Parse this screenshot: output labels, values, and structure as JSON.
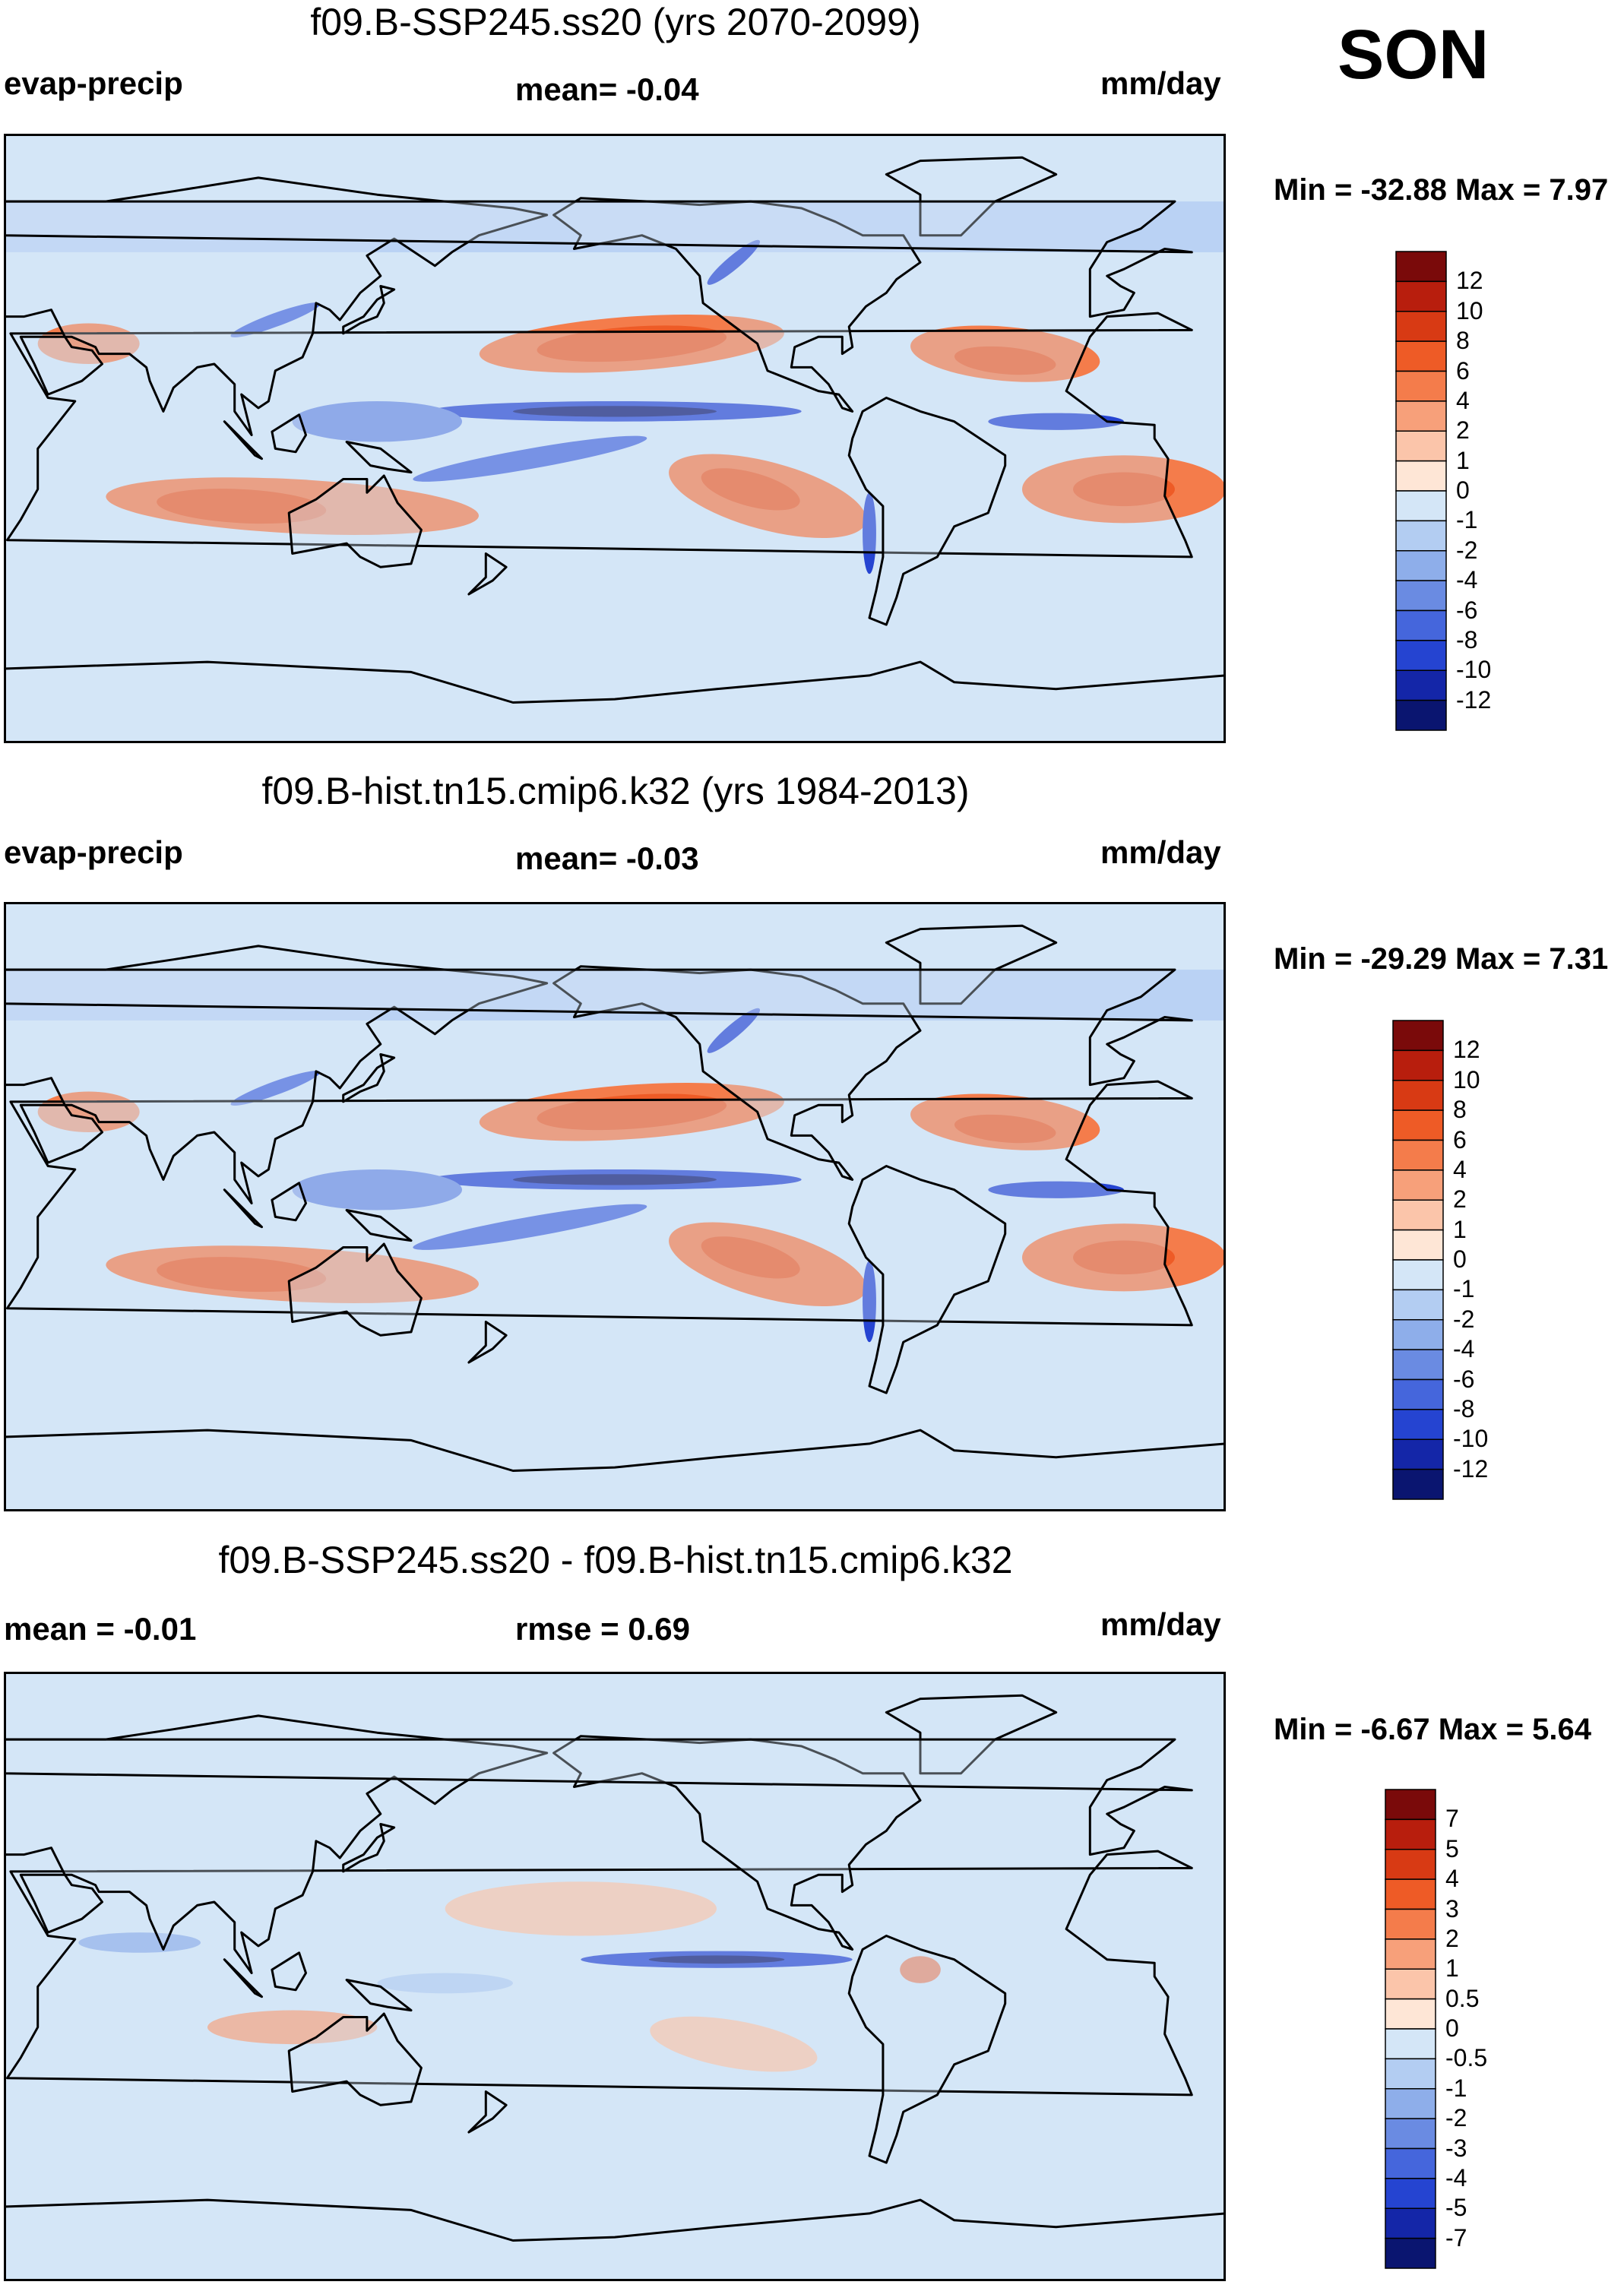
{
  "season": "SON",
  "colors": {
    "ocean_bg": "#d4e6f7",
    "coast": "#000000",
    "frame": "#000000"
  },
  "chart_data": [
    {
      "type": "heatmap",
      "title": "f09.B-SSP245.ss20 (yrs 2070-2099)",
      "left_label": "evap-precip",
      "center_label": "mean=  -0.04",
      "units": "mm/day",
      "minmax": "Min = -32.88 Max =   7.97",
      "mean": -0.04,
      "min": -32.88,
      "max": 7.97,
      "colorbar": {
        "labels": [
          "12",
          "10",
          "8",
          "6",
          "4",
          "2",
          "1",
          "0",
          "-1",
          "-2",
          "-4",
          "-6",
          "-8",
          "-10",
          "-12"
        ],
        "colors": [
          "#7a0a0a",
          "#b81e0d",
          "#d83a14",
          "#ee5b26",
          "#f47c4b",
          "#f7a07a",
          "#fbc5aa",
          "#fee6d6",
          "#d4e6f7",
          "#b3cdf2",
          "#8eaeea",
          "#6a8be2",
          "#4566dc",
          "#2544d1",
          "#1426a8",
          "#0a1570"
        ]
      }
    },
    {
      "type": "heatmap",
      "title": "f09.B-hist.tn15.cmip6.k32 (yrs 1984-2013)",
      "left_label": "evap-precip",
      "center_label": "mean=  -0.03",
      "units": "mm/day",
      "minmax": "Min = -29.29 Max =   7.31",
      "mean": -0.03,
      "min": -29.29,
      "max": 7.31,
      "colorbar": {
        "labels": [
          "12",
          "10",
          "8",
          "6",
          "4",
          "2",
          "1",
          "0",
          "-1",
          "-2",
          "-4",
          "-6",
          "-8",
          "-10",
          "-12"
        ],
        "colors": [
          "#7a0a0a",
          "#b81e0d",
          "#d83a14",
          "#ee5b26",
          "#f47c4b",
          "#f7a07a",
          "#fbc5aa",
          "#fee6d6",
          "#d4e6f7",
          "#b3cdf2",
          "#8eaeea",
          "#6a8be2",
          "#4566dc",
          "#2544d1",
          "#1426a8",
          "#0a1570"
        ]
      }
    },
    {
      "type": "heatmap",
      "title": "f09.B-SSP245.ss20 - f09.B-hist.tn15.cmip6.k32",
      "left_label": "mean =  -0.01",
      "center_label": "rmse =   0.69",
      "units": "mm/day",
      "minmax": "Min =  -6.67 Max =   5.64",
      "mean": -0.01,
      "rmse": 0.69,
      "min": -6.67,
      "max": 5.64,
      "colorbar": {
        "labels": [
          "7",
          "5",
          "4",
          "3",
          "2",
          "1",
          "0.5",
          "0",
          "-0.5",
          "-1",
          "-2",
          "-3",
          "-4",
          "-5",
          "-7"
        ],
        "colors": [
          "#7a0a0a",
          "#b81e0d",
          "#d83a14",
          "#ee5b26",
          "#f47c4b",
          "#f7a07a",
          "#fbc5aa",
          "#fee6d6",
          "#d4e6f7",
          "#b3cdf2",
          "#8eaeea",
          "#6a8be2",
          "#4566dc",
          "#2544d1",
          "#1426a8",
          "#0a1570"
        ]
      }
    }
  ]
}
